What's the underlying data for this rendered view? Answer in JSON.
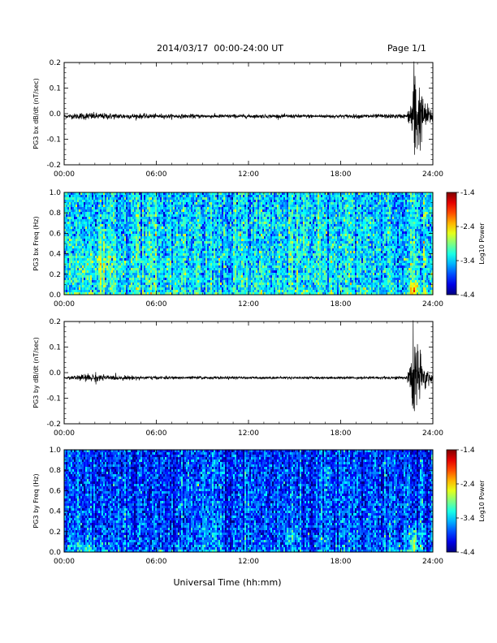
{
  "header": {
    "title": "2014/03/17  00:00-24:00 UT",
    "page": "Page 1/1"
  },
  "footer": {
    "xlabel": "Universal Time (hh:mm)"
  },
  "chart_data": [
    {
      "type": "line",
      "ylabel": "PG3 bx dB/dt (nT/sec)",
      "ylim": [
        -0.2,
        0.2
      ],
      "yticks": [
        "0.2",
        "0.1",
        "0.0",
        "-0.1",
        "-0.2"
      ],
      "xlim": [
        0,
        24
      ],
      "xticks": [
        "00:00",
        "06:00",
        "12:00",
        "18:00",
        "24:00"
      ],
      "series": [
        {
          "baseline": -0.01,
          "noise": [
            [
              0,
              0.006
            ],
            [
              1.5,
              0.012
            ],
            [
              2.5,
              0.01
            ],
            [
              6,
              0.007
            ],
            [
              12,
              0.006
            ],
            [
              18,
              0.006
            ],
            [
              22.3,
              0.007
            ],
            [
              22.5,
              0.03
            ],
            [
              22.8,
              0.2
            ],
            [
              23.1,
              0.12
            ],
            [
              23.4,
              0.05
            ],
            [
              24,
              0.02
            ]
          ]
        }
      ]
    },
    {
      "type": "heatmap",
      "ylabel": "PG3 bx Freq (Hz)",
      "ylim": [
        0.0,
        1.0
      ],
      "yticks": [
        "1.0",
        "0.8",
        "0.6",
        "0.4",
        "0.2",
        "0.0"
      ],
      "xlim": [
        0,
        24
      ],
      "xticks": [
        "00:00",
        "06:00",
        "12:00",
        "18:00",
        "24:00"
      ],
      "colorbar": {
        "label": "Log10 Power",
        "ticks": [
          "-1.4",
          "-2.4",
          "-3.4",
          "-4.4"
        ],
        "range": [
          -4.4,
          -1.4
        ]
      },
      "level": -3.3,
      "hotspots": [
        [
          2.5,
          0.3,
          1.5,
          0.2,
          0.3
        ],
        [
          22.8,
          0.05,
          0.3,
          0.08,
          0.9
        ]
      ]
    },
    {
      "type": "line",
      "ylabel": "PG3 by dB/dt (nT/sec)",
      "ylim": [
        -0.2,
        0.2
      ],
      "yticks": [
        "0.2",
        "0.1",
        "0.0",
        "-0.1",
        "-0.2"
      ],
      "xlim": [
        0,
        24
      ],
      "xticks": [
        "00:00",
        "06:00",
        "12:00",
        "18:00",
        "24:00"
      ],
      "series": [
        {
          "baseline": -0.02,
          "noise": [
            [
              0,
              0.004
            ],
            [
              2,
              0.015
            ],
            [
              2.8,
              0.008
            ],
            [
              6,
              0.005
            ],
            [
              12,
              0.004
            ],
            [
              18,
              0.004
            ],
            [
              22.3,
              0.005
            ],
            [
              22.5,
              0.04
            ],
            [
              22.8,
              0.18
            ],
            [
              23.1,
              0.1
            ],
            [
              23.4,
              0.04
            ],
            [
              24,
              0.015
            ]
          ]
        }
      ]
    },
    {
      "type": "heatmap",
      "ylabel": "PG3 by Freq (Hz)",
      "ylim": [
        0.0,
        1.0
      ],
      "yticks": [
        "1.0",
        "0.8",
        "0.6",
        "0.4",
        "0.2",
        "0.0"
      ],
      "xlim": [
        0,
        24
      ],
      "xticks": [
        "00:00",
        "06:00",
        "12:00",
        "18:00",
        "24:00"
      ],
      "colorbar": {
        "label": "Log10 Power",
        "ticks": [
          "-1.4",
          "-2.4",
          "-3.4",
          "-4.4"
        ],
        "range": [
          -4.4,
          -1.4
        ]
      },
      "level": -3.8,
      "hotspots": [
        [
          1.5,
          0.05,
          1.5,
          0.05,
          0.35
        ],
        [
          14.8,
          0.15,
          0.4,
          0.06,
          0.5
        ],
        [
          22.8,
          0.08,
          0.3,
          0.15,
          1.0
        ]
      ]
    }
  ]
}
